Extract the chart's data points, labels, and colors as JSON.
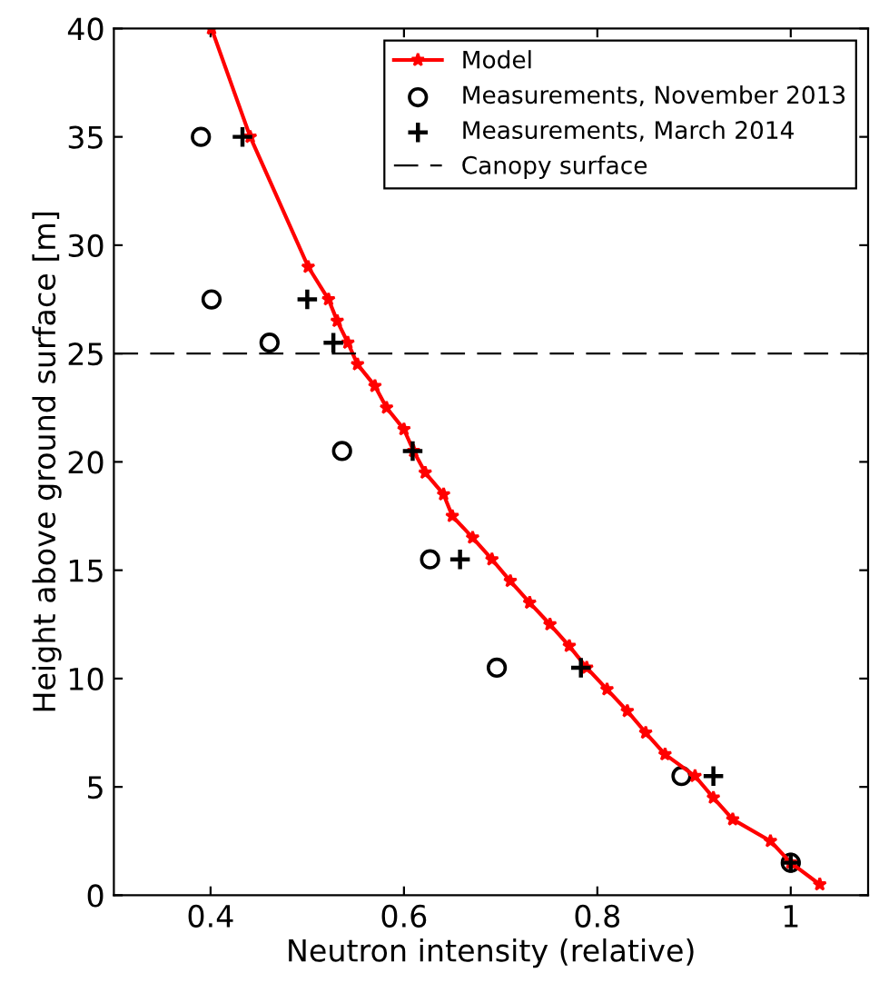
{
  "chart_data": {
    "type": "line",
    "xlabel": "Neutron intensity (relative)",
    "ylabel": "Height above ground surface [m]",
    "xlim": [
      0.3,
      1.08
    ],
    "xticks": [
      0.4,
      0.6,
      0.8,
      1
    ],
    "ylim": [
      0,
      40
    ],
    "yticks": [
      0,
      5,
      10,
      15,
      20,
      25,
      30,
      35,
      40
    ],
    "grid": false,
    "legend": "top right",
    "series": [
      {
        "name": "Model",
        "color": "#ff0000",
        "marker": "star",
        "line_style": "solid",
        "x": [
          0.401,
          0.441,
          0.501,
          0.522,
          0.531,
          0.542,
          0.552,
          0.57,
          0.582,
          0.6,
          0.61,
          0.622,
          0.641,
          0.65,
          0.671,
          0.691,
          0.71,
          0.73,
          0.751,
          0.771,
          0.789,
          0.81,
          0.831,
          0.85,
          0.87,
          0.901,
          0.92,
          0.94,
          0.979,
          1.0,
          1.03
        ],
        "values": [
          40,
          35,
          29,
          27.5,
          26.5,
          25.5,
          24.5,
          23.5,
          22.5,
          21.5,
          20.5,
          19.5,
          18.5,
          17.5,
          16.5,
          15.5,
          14.5,
          13.5,
          12.5,
          11.5,
          10.5,
          9.5,
          8.5,
          7.5,
          6.5,
          5.5,
          4.5,
          3.5,
          2.5,
          1.5,
          0.5
        ]
      },
      {
        "name": "Measurements, November 2013",
        "type": "scatter",
        "color": "#000000",
        "marker": "circle",
        "x": [
          0.39,
          0.401,
          0.461,
          0.536,
          0.627,
          0.696,
          0.887,
          1.0
        ],
        "values": [
          35,
          27.5,
          25.5,
          20.5,
          15.5,
          10.5,
          5.5,
          1.5
        ]
      },
      {
        "name": "Measurements, March 2014",
        "type": "scatter",
        "color": "#000000",
        "marker": "cross",
        "x": [
          0.433,
          0.5,
          0.527,
          0.609,
          0.658,
          0.783,
          0.92,
          1.0
        ],
        "values": [
          35,
          27.5,
          25.5,
          20.5,
          15.5,
          10.5,
          5.5,
          1.5
        ]
      }
    ],
    "ref_lines": [
      {
        "axis": "y",
        "value": 25,
        "label": "Canopy surface",
        "color": "#000000",
        "line_style": "dashed"
      }
    ]
  }
}
